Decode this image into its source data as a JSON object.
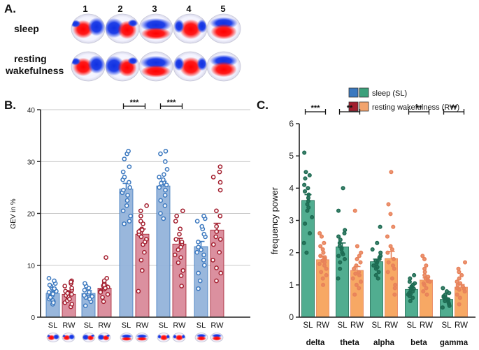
{
  "panels": {
    "A": "A.",
    "B": "B.",
    "C": "C."
  },
  "panelA": {
    "columns": [
      "1",
      "2",
      "3",
      "4",
      "5"
    ],
    "rows": [
      "sleep",
      "resting wakefulness"
    ],
    "row_lines": [
      [
        "sleep"
      ],
      [
        "resting",
        "wakefulness"
      ]
    ],
    "maps": {
      "sleep": [
        "red-left-blue-right",
        "blue-left-red-right",
        "blue-top-red-bottom",
        "red-center",
        "red-bottom-blue-top"
      ],
      "resting wakefulness": [
        "red-left-blue-right",
        "blue-left-red-right",
        "blue-top-red-bottom",
        "red-center",
        "red-bottom-blue-top"
      ]
    }
  },
  "chart_data": [
    {
      "type": "bar",
      "panel": "B",
      "title": "",
      "ylabel": "GEV in %",
      "ylim": [
        0,
        40
      ],
      "yticks": [
        0,
        10,
        20,
        30,
        40
      ],
      "grid": true,
      "categories": [
        "1",
        "2",
        "3",
        "4",
        "5"
      ],
      "conditions": [
        "SL",
        "RW"
      ],
      "series": [
        {
          "name": "SL",
          "color": "#93B3DA",
          "point_color": "#3B78BF",
          "values": [
            4.6,
            4.6,
            24.7,
            25.3,
            13.6
          ],
          "sem": [
            0.4,
            0.5,
            1.1,
            0.9,
            1.0
          ],
          "points": [
            [
              2.5,
              3.0,
              3.5,
              4.0,
              4.2,
              4.5,
              4.8,
              5.0,
              5.3,
              5.6,
              6.0,
              6.5,
              7.0,
              7.5,
              3.2,
              3.8,
              5.5,
              6.2,
              2.8
            ],
            [
              2.2,
              3.0,
              3.5,
              4.0,
              4.5,
              4.8,
              5.2,
              5.6,
              6.0,
              6.5,
              3.8,
              4.2
            ],
            [
              18.5,
              19.5,
              20.5,
              21.5,
              22.5,
              23.5,
              24.0,
              24.5,
              25.0,
              26.0,
              26.5,
              27.0,
              28.0,
              29.0,
              30.5,
              31.5,
              32.0,
              18.0
            ],
            [
              19.0,
              20.0,
              21.5,
              22.5,
              23.5,
              24.5,
              25.0,
              25.5,
              26.0,
              26.5,
              27.0,
              27.5,
              28.5,
              30.0,
              31.5,
              32.0,
              25.8
            ],
            [
              5.5,
              7.0,
              8.5,
              10.0,
              11.0,
              12.0,
              12.5,
              13.0,
              13.5,
              14.5,
              15.5,
              16.0,
              17.0,
              17.5,
              18.5,
              19.0,
              19.5
            ]
          ]
        },
        {
          "name": "RW",
          "color": "#D98A9A",
          "point_color": "#A31E2E",
          "values": [
            4.4,
            5.6,
            16.0,
            14.1,
            16.8
          ],
          "sem": [
            0.4,
            0.6,
            1.0,
            1.1,
            1.3
          ],
          "points": [
            [
              2.0,
              2.8,
              3.2,
              3.8,
              4.0,
              4.4,
              4.8,
              5.2,
              5.6,
              6.0,
              6.5,
              7.0,
              2.5,
              3.5,
              4.2,
              5.0,
              6.8,
              4.6
            ],
            [
              3.0,
              3.8,
              4.4,
              5.0,
              5.4,
              5.8,
              6.0,
              6.5,
              7.0,
              7.5,
              11.5,
              4.8,
              5.6,
              6.2
            ],
            [
              5.0,
              9.0,
              11.0,
              12.5,
              14.0,
              15.0,
              15.5,
              16.0,
              16.5,
              17.0,
              18.0,
              18.5,
              19.5,
              20.5,
              21.5,
              16.8,
              14.5
            ],
            [
              6.0,
              8.0,
              9.0,
              10.5,
              11.5,
              12.0,
              13.0,
              14.0,
              14.5,
              15.0,
              16.0,
              17.0,
              18.5,
              19.5,
              20.5,
              13.5
            ],
            [
              7.0,
              8.5,
              9.5,
              11.0,
              12.5,
              14.0,
              15.5,
              16.5,
              17.5,
              19.5,
              20.5,
              24.5,
              26.0,
              27.0,
              28.0,
              29.0,
              15.0
            ]
          ]
        }
      ],
      "significance": [
        {
          "category": "3",
          "label": "***"
        },
        {
          "category": "4",
          "label": "***"
        }
      ],
      "tick_labels": {
        "sl": "SL",
        "rw": "RW"
      }
    },
    {
      "type": "bar",
      "panel": "C",
      "title": "",
      "ylabel": "frequency power",
      "ylim": [
        0,
        6
      ],
      "yticks": [
        0,
        1,
        2,
        3,
        4,
        5,
        6
      ],
      "grid": false,
      "categories": [
        "delta",
        "theta",
        "alpha",
        "beta",
        "gamma"
      ],
      "conditions": [
        "SL",
        "RW"
      ],
      "legend": {
        "position": "top-right",
        "entries": [
          "sleep (SL)",
          "resting wakefulness (RW)"
        ],
        "swatches": [
          [
            "#3B78BF",
            "#3CA07B"
          ],
          [
            "#A31E2E",
            "#F2A46E"
          ]
        ]
      },
      "series": [
        {
          "name": "SL",
          "color": "#48A98A",
          "point_color": "#1D6B52",
          "values": [
            3.62,
            2.18,
            1.72,
            0.86,
            0.55
          ],
          "sem": [
            0.18,
            0.12,
            0.08,
            0.06,
            0.04
          ],
          "points": [
            [
              2.0,
              2.3,
              2.6,
              2.9,
              3.1,
              3.3,
              3.5,
              3.6,
              3.7,
              3.8,
              3.9,
              4.0,
              4.1,
              4.3,
              4.4,
              4.5,
              5.1,
              3.4
            ],
            [
              1.2,
              1.5,
              1.7,
              1.8,
              1.9,
              2.0,
              2.1,
              2.2,
              2.3,
              2.4,
              2.5,
              2.6,
              2.7,
              3.3,
              4.0,
              2.15,
              1.95
            ],
            [
              1.2,
              1.3,
              1.4,
              1.5,
              1.6,
              1.7,
              1.75,
              1.8,
              1.85,
              1.9,
              2.0,
              2.1,
              2.3,
              2.8,
              1.65,
              1.55
            ],
            [
              0.5,
              0.6,
              0.65,
              0.7,
              0.75,
              0.8,
              0.85,
              0.9,
              0.95,
              1.0,
              1.05,
              1.1,
              1.2,
              1.3,
              0.72,
              0.88
            ],
            [
              0.3,
              0.35,
              0.4,
              0.45,
              0.5,
              0.55,
              0.6,
              0.62,
              0.65,
              0.7,
              0.75,
              0.8,
              0.9,
              0.52,
              0.58
            ]
          ]
        },
        {
          "name": "RW",
          "color": "#F7A35C",
          "point_color": "#E8825A",
          "values": [
            1.78,
            1.45,
            1.82,
            1.15,
            0.93
          ],
          "sem": [
            0.12,
            0.12,
            0.22,
            0.07,
            0.08
          ],
          "points": [
            [
              1.0,
              1.2,
              1.3,
              1.4,
              1.5,
              1.6,
              1.7,
              1.75,
              1.8,
              1.9,
              2.0,
              2.1,
              2.2,
              2.3,
              2.5,
              2.6,
              1.65,
              1.85
            ],
            [
              0.7,
              0.9,
              1.0,
              1.1,
              1.2,
              1.3,
              1.4,
              1.5,
              1.6,
              1.7,
              1.8,
              1.9,
              2.0,
              2.2,
              3.3,
              1.35
            ],
            [
              0.7,
              0.9,
              1.0,
              1.2,
              1.4,
              1.5,
              1.6,
              1.8,
              2.0,
              2.1,
              2.2,
              2.5,
              2.8,
              3.2,
              3.5,
              4.5,
              1.7
            ],
            [
              0.7,
              0.8,
              0.9,
              1.0,
              1.05,
              1.1,
              1.15,
              1.2,
              1.25,
              1.3,
              1.4,
              1.5,
              1.6,
              1.8,
              1.9,
              1.12
            ],
            [
              0.4,
              0.6,
              0.7,
              0.8,
              0.85,
              0.9,
              0.95,
              1.0,
              1.05,
              1.1,
              1.2,
              1.3,
              1.4,
              1.5,
              1.7,
              0.88
            ]
          ]
        }
      ],
      "significance": [
        {
          "category": "delta",
          "label": "***"
        },
        {
          "category": "theta",
          "label": "**"
        },
        {
          "category": "beta",
          "label": "**"
        },
        {
          "category": "gamma",
          "label": "**"
        }
      ],
      "tick_labels": {
        "sl": "SL",
        "rw": "RW"
      }
    }
  ]
}
